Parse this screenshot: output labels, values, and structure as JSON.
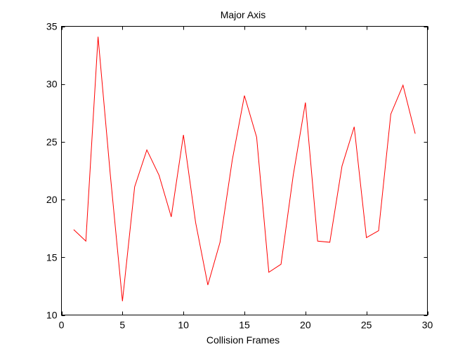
{
  "chart_data": {
    "type": "line",
    "title": "Major Axis",
    "xlabel": "Collision Frames",
    "ylabel": "",
    "xlim": [
      0,
      30
    ],
    "ylim": [
      10,
      35
    ],
    "xticks": [
      0,
      5,
      10,
      15,
      20,
      25,
      30
    ],
    "yticks": [
      10,
      15,
      20,
      25,
      30,
      35
    ],
    "xtick_labels": [
      "0",
      "5",
      "10",
      "15",
      "20",
      "25",
      "30"
    ],
    "ytick_labels": [
      "10",
      "15",
      "20",
      "25",
      "30",
      "35"
    ],
    "grid": false,
    "series": [
      {
        "color": "#ff0000",
        "x": [
          1,
          2,
          3,
          4,
          5,
          6,
          7,
          8,
          9,
          10,
          11,
          12,
          13,
          14,
          15,
          16,
          17,
          18,
          19,
          20,
          21,
          22,
          23,
          24,
          25,
          26,
          27,
          28,
          29
        ],
        "y": [
          17.4,
          16.4,
          34.1,
          22.2,
          11.2,
          21.1,
          24.3,
          22.1,
          18.5,
          25.6,
          18.0,
          12.6,
          16.3,
          23.4,
          29.0,
          25.4,
          13.7,
          14.4,
          22.1,
          28.4,
          16.4,
          16.3,
          22.9,
          26.3,
          16.7,
          17.3,
          27.4,
          29.9,
          25.7
        ]
      }
    ]
  }
}
